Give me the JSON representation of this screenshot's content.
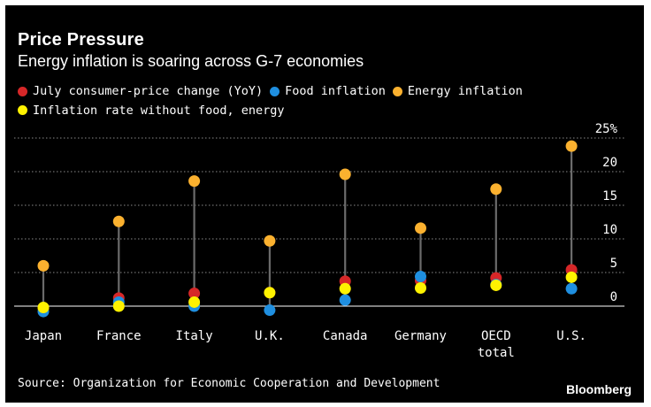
{
  "title": "Price Pressure",
  "subtitle": "Energy inflation is soaring across G-7 economies",
  "source": "Source: Organization for Economic Cooperation and Development",
  "brand": "Bloomberg",
  "colors": {
    "background": "#000000",
    "headline": "#d62728",
    "food": "#1f8fe0",
    "energy": "#fbb12f",
    "core": "#fff200",
    "stem": "#6b6b6b",
    "grid": "#8a8a8a"
  },
  "chart_data": {
    "type": "dot-range",
    "categories": [
      "Japan",
      "France",
      "Italy",
      "U.K.",
      "Canada",
      "Germany",
      "OECD total",
      "U.S."
    ],
    "category_lines": [
      [
        "Japan"
      ],
      [
        "France"
      ],
      [
        "Italy"
      ],
      [
        "U.K."
      ],
      [
        "Canada"
      ],
      [
        "Germany"
      ],
      [
        "OECD",
        "total"
      ],
      [
        "U.S."
      ]
    ],
    "series": [
      {
        "name": "July consumer-price change (YoY)",
        "color": "#d62728",
        "values": [
          -0.3,
          1.2,
          1.9,
          2.0,
          3.7,
          3.8,
          4.2,
          5.4
        ]
      },
      {
        "name": "Food inflation",
        "color": "#1f8fe0",
        "values": [
          -0.8,
          0.6,
          0.0,
          -0.6,
          0.9,
          4.4,
          3.2,
          2.6
        ]
      },
      {
        "name": "Energy inflation",
        "color": "#fbb12f",
        "values": [
          6.0,
          12.6,
          18.6,
          9.7,
          19.6,
          11.6,
          17.4,
          23.8
        ]
      },
      {
        "name": "Inflation rate without food, energy",
        "color": "#fff200",
        "values": [
          -0.2,
          0.0,
          0.6,
          2.0,
          2.6,
          2.7,
          3.1,
          4.3
        ]
      }
    ],
    "ylim": [
      -2,
      25
    ],
    "yticks": [
      0,
      5,
      10,
      15,
      20,
      25
    ],
    "ytick_labels": [
      "0",
      "5",
      "10",
      "15",
      "20",
      "25%"
    ],
    "grid": true,
    "legend_position": "top-left"
  }
}
